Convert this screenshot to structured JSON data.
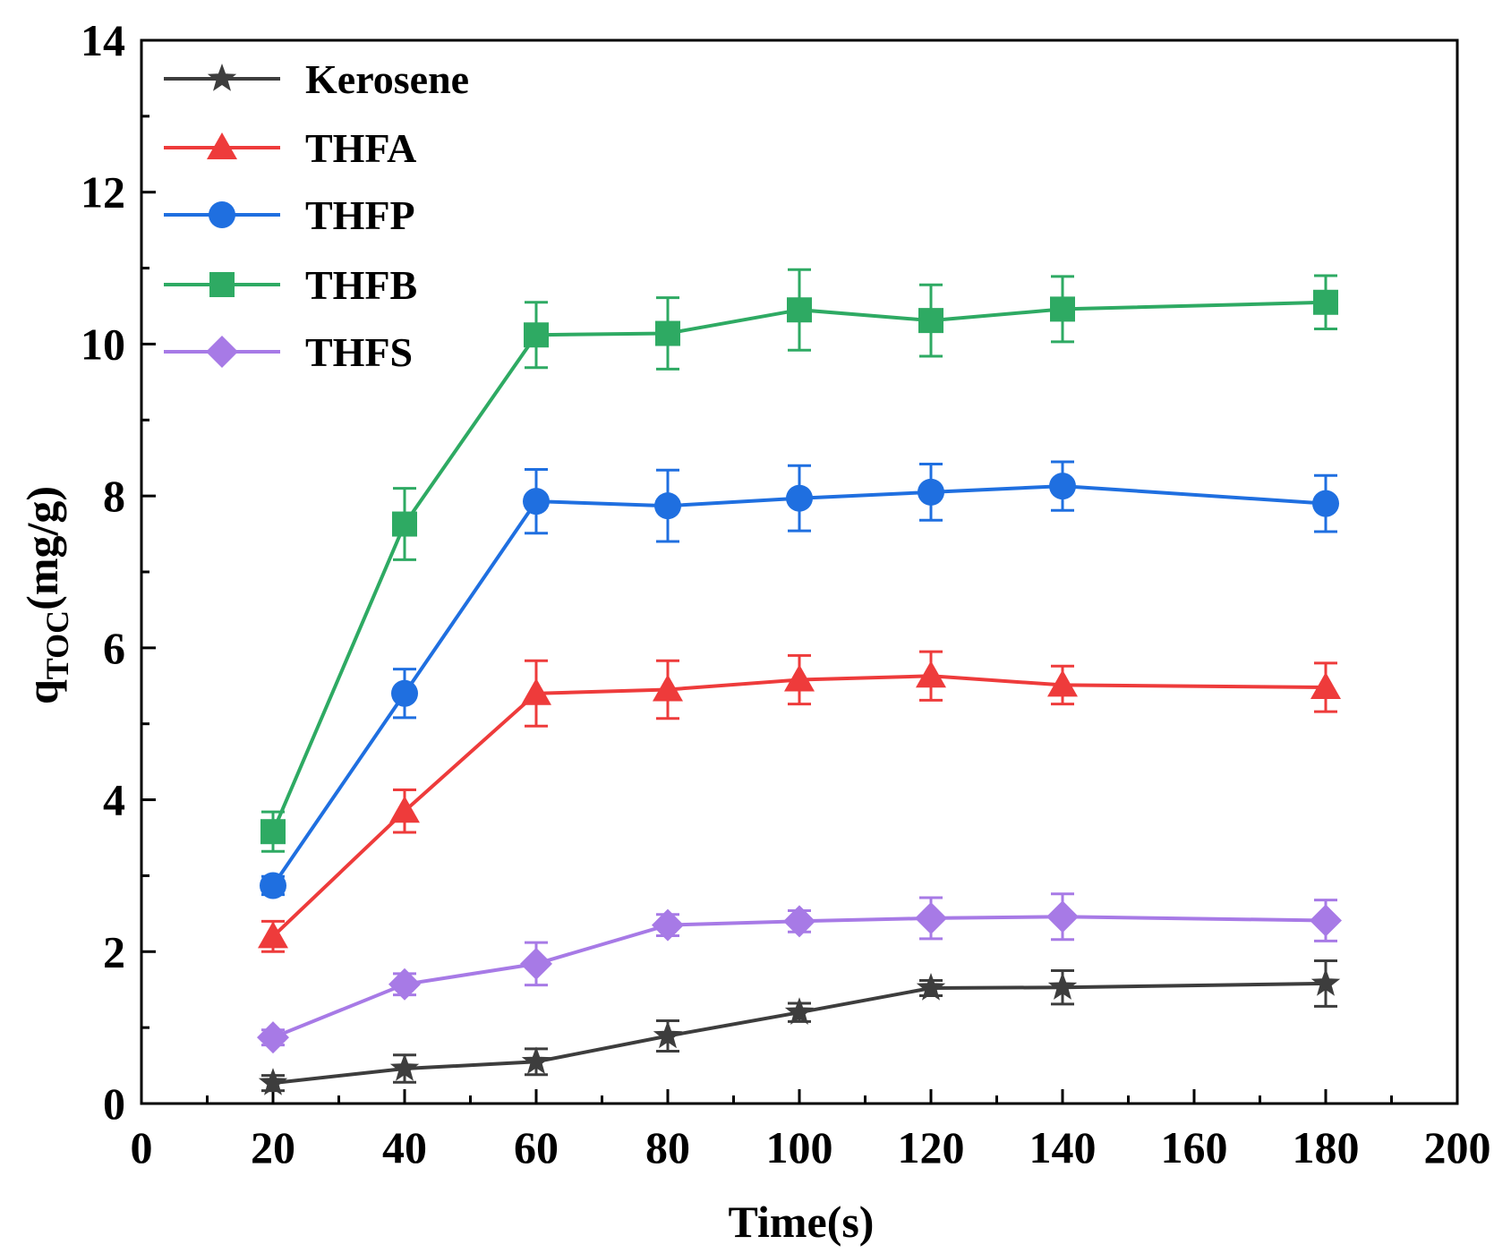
{
  "chart_data": {
    "type": "line",
    "title": "",
    "xlabel": "Time(s)",
    "ylabel": {
      "main": "q",
      "subscript": "TOC",
      "unit": "(mg/g)"
    },
    "xlim": [
      0,
      200
    ],
    "ylim": [
      0,
      14
    ],
    "xticks": [
      0,
      20,
      40,
      60,
      80,
      100,
      120,
      140,
      160,
      180,
      200
    ],
    "yticks": [
      0,
      2,
      4,
      6,
      8,
      10,
      12,
      14
    ],
    "grid": false,
    "legend_position": "top-left",
    "x": [
      20,
      40,
      60,
      80,
      100,
      120,
      140,
      180
    ],
    "series": [
      {
        "name": "Kerosene",
        "color": "#3d3d3d",
        "marker": "star",
        "values": [
          0.27,
          0.46,
          0.55,
          0.89,
          1.2,
          1.52,
          1.53,
          1.58
        ],
        "errors": [
          0.1,
          0.18,
          0.17,
          0.2,
          0.12,
          0.1,
          0.22,
          0.3
        ]
      },
      {
        "name": "THFA",
        "color": "#ee3b3b",
        "marker": "triangle",
        "values": [
          2.2,
          3.85,
          5.4,
          5.45,
          5.58,
          5.63,
          5.51,
          5.48
        ],
        "errors": [
          0.2,
          0.28,
          0.43,
          0.38,
          0.32,
          0.32,
          0.25,
          0.32
        ]
      },
      {
        "name": "THFP",
        "color": "#1f6fe0",
        "marker": "circle",
        "values": [
          2.87,
          5.4,
          7.93,
          7.87,
          7.97,
          8.05,
          8.13,
          7.9
        ],
        "errors": [
          0.12,
          0.32,
          0.42,
          0.47,
          0.43,
          0.37,
          0.32,
          0.37
        ]
      },
      {
        "name": "THFB",
        "color": "#2eaa63",
        "marker": "square",
        "values": [
          3.58,
          7.63,
          10.12,
          10.14,
          10.45,
          10.31,
          10.46,
          10.55
        ],
        "errors": [
          0.26,
          0.47,
          0.43,
          0.47,
          0.53,
          0.47,
          0.43,
          0.35
        ]
      },
      {
        "name": "THFS",
        "color": "#a77ae6",
        "marker": "diamond",
        "values": [
          0.87,
          1.57,
          1.84,
          2.35,
          2.4,
          2.44,
          2.46,
          2.41
        ],
        "errors": [
          0.1,
          0.14,
          0.28,
          0.14,
          0.14,
          0.27,
          0.3,
          0.27
        ]
      }
    ]
  }
}
